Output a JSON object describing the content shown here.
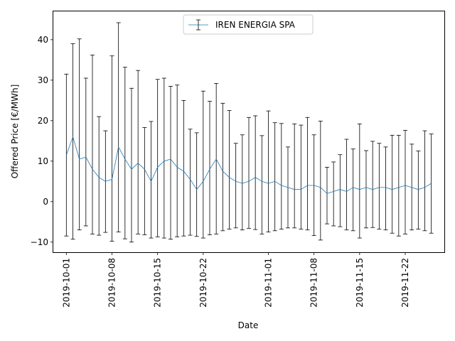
{
  "chart_data": {
    "type": "line",
    "title": "",
    "xlabel": "Date",
    "ylabel": "Offered Price [€/MWh]",
    "xlim": [
      "2019-09-29",
      "2019-11-28"
    ],
    "ylim": [
      -12.5,
      47
    ],
    "x_ticks": [
      "2019-10-01",
      "2019-10-08",
      "2019-10-15",
      "2019-10-22",
      "2019-11-01",
      "2019-11-08",
      "2019-11-15",
      "2019-11-22"
    ],
    "y_ticks": [
      -10,
      0,
      10,
      20,
      30,
      40
    ],
    "grid": false,
    "legend_position": "top-center",
    "series_color": "#1f77b4",
    "errorbar_color": "#000000",
    "series": [
      {
        "name": "IREN ENERGIA SPA",
        "x": [
          "2019-10-01",
          "2019-10-02",
          "2019-10-03",
          "2019-10-04",
          "2019-10-05",
          "2019-10-06",
          "2019-10-07",
          "2019-10-08",
          "2019-10-09",
          "2019-10-10",
          "2019-10-11",
          "2019-10-12",
          "2019-10-13",
          "2019-10-14",
          "2019-10-15",
          "2019-10-16",
          "2019-10-17",
          "2019-10-18",
          "2019-10-19",
          "2019-10-20",
          "2019-10-21",
          "2019-10-22",
          "2019-10-23",
          "2019-10-24",
          "2019-10-25",
          "2019-10-26",
          "2019-10-27",
          "2019-10-28",
          "2019-10-29",
          "2019-10-30",
          "2019-10-31",
          "2019-11-01",
          "2019-11-02",
          "2019-11-03",
          "2019-11-04",
          "2019-11-05",
          "2019-11-06",
          "2019-11-07",
          "2019-11-08",
          "2019-11-09",
          "2019-11-10",
          "2019-11-11",
          "2019-11-12",
          "2019-11-13",
          "2019-11-14",
          "2019-11-15",
          "2019-11-16",
          "2019-11-17",
          "2019-11-18",
          "2019-11-19",
          "2019-11-20",
          "2019-11-21",
          "2019-11-22",
          "2019-11-23",
          "2019-11-24",
          "2019-11-25",
          "2019-11-26"
        ],
        "y": [
          11.5,
          16.0,
          10.5,
          11.0,
          8.0,
          6.0,
          5.0,
          5.5,
          13.5,
          10.5,
          8.0,
          9.5,
          8.0,
          5.0,
          8.5,
          10.0,
          10.5,
          8.5,
          7.5,
          5.5,
          3.0,
          5.0,
          8.0,
          10.5,
          7.5,
          6.0,
          5.0,
          4.5,
          5.0,
          6.0,
          5.0,
          4.5,
          5.0,
          4.0,
          3.5,
          3.0,
          3.0,
          4.0,
          4.0,
          3.5,
          2.0,
          2.5,
          3.0,
          2.5,
          3.5,
          3.0,
          3.5,
          3.0,
          3.5,
          3.5,
          3.0,
          3.5,
          4.0,
          3.5,
          3.0,
          3.5,
          4.5
        ],
        "upper": [
          31.5,
          39.0,
          40.2,
          30.5,
          36.2,
          21.0,
          17.5,
          36.0,
          44.2,
          33.2,
          28.0,
          32.4,
          18.3,
          19.8,
          30.2,
          30.5,
          28.5,
          28.8,
          25.0,
          17.9,
          17.0,
          27.3,
          24.8,
          29.2,
          24.3,
          22.5,
          14.4,
          16.5,
          20.8,
          21.2,
          16.3,
          22.4,
          19.5,
          19.3,
          13.5,
          19.2,
          18.9,
          20.8,
          16.5,
          19.9,
          8.5,
          9.8,
          11.6,
          15.4,
          13.0,
          19.2,
          12.6,
          14.9,
          14.4,
          13.5,
          16.4,
          16.4,
          17.6,
          14.2,
          12.5,
          17.5,
          16.7
        ],
        "lower": [
          -8.5,
          -9.3,
          -7.0,
          -6.0,
          -8.0,
          -8.3,
          -7.6,
          -9.8,
          -7.5,
          -9.2,
          -10.0,
          -8.0,
          -8.2,
          -9.0,
          -8.7,
          -9.0,
          -9.3,
          -8.7,
          -8.5,
          -8.3,
          -8.6,
          -9.0,
          -8.2,
          -8.0,
          -7.2,
          -6.8,
          -6.5,
          -7.0,
          -6.6,
          -6.9,
          -8.0,
          -7.5,
          -7.2,
          -6.8,
          -6.5,
          -6.5,
          -6.8,
          -7.0,
          -8.4,
          -9.5,
          -5.5,
          -6.0,
          -6.2,
          -7.0,
          -7.2,
          -9.0,
          -6.5,
          -6.4,
          -6.8,
          -7.0,
          -7.8,
          -8.5,
          -8.0,
          -7.0,
          -6.8,
          -7.2,
          -7.8
        ]
      }
    ]
  }
}
